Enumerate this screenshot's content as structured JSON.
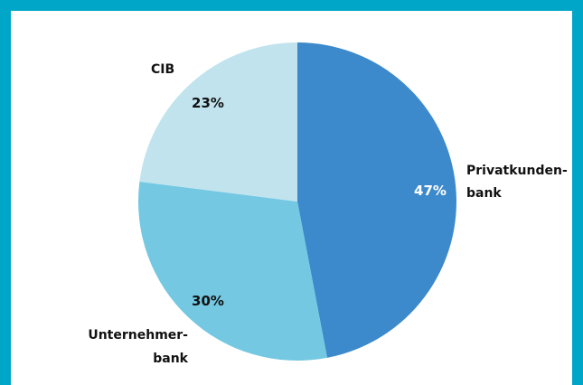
{
  "frame": {
    "accent_color": "#00a6c8"
  },
  "chart_data": {
    "type": "pie",
    "slices": [
      {
        "label_lines": [
          "Privatkunden-",
          "bank"
        ],
        "value": 47,
        "value_label": "47%",
        "color": "#3c8acb",
        "value_label_color": "#ffffff"
      },
      {
        "label_lines": [
          "Unternehmer-",
          "bank"
        ],
        "value": 30,
        "value_label": "30%",
        "color": "#74c8e2",
        "value_label_color": "#111111"
      },
      {
        "label_lines": [
          "CIB"
        ],
        "value": 23,
        "value_label": "23%",
        "color": "#c0e3ee",
        "value_label_color": "#111111"
      }
    ],
    "start_angle_deg": 0,
    "direction": "clockwise"
  }
}
